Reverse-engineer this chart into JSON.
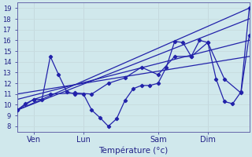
{
  "title": "Température (°c)",
  "bg_color": "#d0e8ec",
  "grid_color": "#b8d8dc",
  "line_color": "#2222aa",
  "ylim": [
    7.5,
    19.5
  ],
  "xlim": [
    0,
    28
  ],
  "ylabel_ticks": [
    8,
    9,
    10,
    11,
    12,
    13,
    14,
    15,
    16,
    17,
    18,
    19
  ],
  "day_labels": [
    "Ven",
    "Lun",
    "Sam",
    "Dim"
  ],
  "day_positions": [
    2,
    8,
    17,
    23
  ],
  "vline_positions": [
    2,
    8,
    17,
    23
  ],
  "straight_lines": [
    {
      "x": [
        0,
        28
      ],
      "y": [
        9.5,
        19.0
      ]
    },
    {
      "x": [
        0,
        28
      ],
      "y": [
        9.5,
        18.0
      ]
    },
    {
      "x": [
        0,
        28
      ],
      "y": [
        10.5,
        16.0
      ]
    },
    {
      "x": [
        0,
        28
      ],
      "y": [
        11.0,
        14.5
      ]
    }
  ],
  "zigzag1_x": [
    0,
    1,
    2,
    3,
    4,
    5,
    6,
    7,
    8,
    9,
    10,
    11,
    12,
    13,
    14,
    15,
    16,
    17,
    18,
    19,
    20,
    21,
    22,
    23,
    24,
    25,
    26,
    27,
    28
  ],
  "zigzag1_y": [
    9.5,
    10.1,
    10.5,
    10.5,
    14.5,
    12.8,
    11.2,
    11.0,
    11.0,
    9.5,
    8.8,
    8.0,
    8.7,
    10.4,
    11.5,
    11.8,
    11.8,
    12.0,
    13.5,
    15.9,
    15.8,
    14.5,
    16.0,
    15.8,
    12.4,
    10.3,
    10.1,
    11.2,
    19.0
  ],
  "zigzag2_x": [
    0,
    2,
    4,
    7,
    9,
    11,
    13,
    15,
    17,
    19,
    21,
    23,
    25,
    27,
    28
  ],
  "zigzag2_y": [
    9.5,
    10.5,
    11.0,
    11.1,
    11.0,
    12.0,
    12.5,
    13.5,
    12.8,
    14.5,
    14.5,
    15.8,
    12.4,
    11.1,
    16.5
  ]
}
